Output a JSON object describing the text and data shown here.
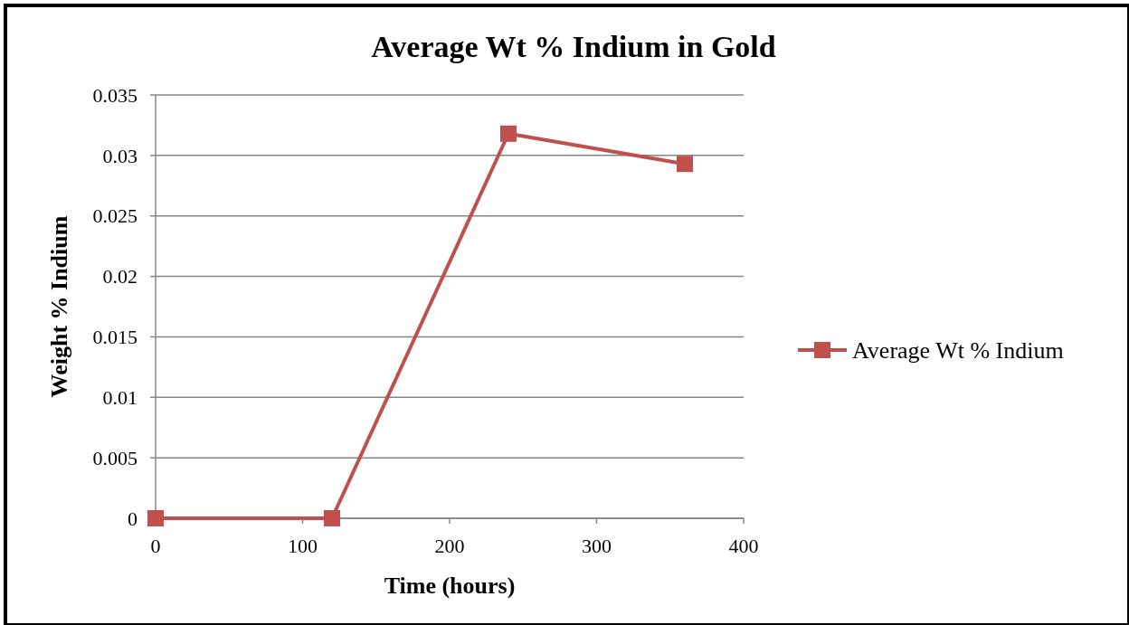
{
  "chart_data": {
    "type": "line",
    "title": "Average Wt % Indium in Gold",
    "xlabel": "Time (hours)",
    "ylabel": "Weight % Indium",
    "x": [
      0,
      120,
      240,
      360
    ],
    "series": [
      {
        "name": "Average Wt % Indium",
        "color": "#c0504d",
        "values": [
          0,
          0,
          0.0318,
          0.0293
        ]
      }
    ],
    "xlim": [
      0,
      400
    ],
    "xticks": [
      0,
      100,
      200,
      300,
      400
    ],
    "ylim": [
      0,
      0.035
    ],
    "yticks": [
      0,
      0.005,
      0.01,
      0.015,
      0.02,
      0.025,
      0.03,
      0.035
    ],
    "grid": "y",
    "legend": "right",
    "marker": "square",
    "line_style": "solid"
  }
}
